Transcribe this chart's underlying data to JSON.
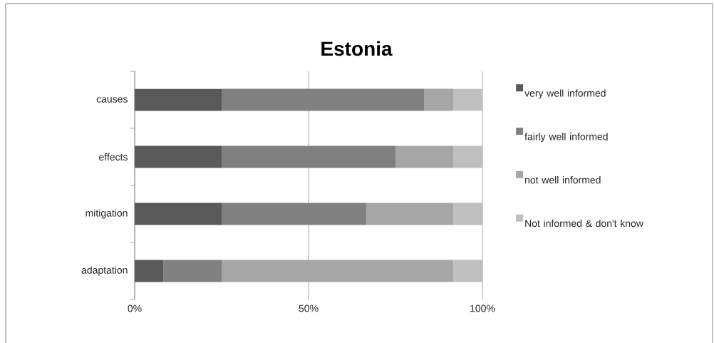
{
  "chart_data": {
    "type": "bar",
    "orientation": "horizontal",
    "stacked": true,
    "title": "Estonia",
    "categories": [
      "causes",
      "effects",
      "mitigation",
      "adaptation"
    ],
    "series": [
      {
        "name": "very well informed",
        "color": "#595959",
        "values": [
          25,
          25,
          25,
          8.3
        ]
      },
      {
        "name": "fairly well informed",
        "color": "#808080",
        "values": [
          58.3,
          50,
          41.7,
          16.7
        ]
      },
      {
        "name": "not well informed",
        "color": "#a6a6a6",
        "values": [
          8.3,
          16.7,
          25,
          66.7
        ]
      },
      {
        "name": "Not informed & don't know",
        "color": "#bfbfbf",
        "values": [
          8.3,
          8.3,
          8.3,
          8.3
        ]
      }
    ],
    "xlim": [
      0,
      100
    ],
    "xticks": [
      {
        "value": 0,
        "label": "0%"
      },
      {
        "value": 50,
        "label": "50%"
      },
      {
        "value": 100,
        "label": "100%"
      }
    ],
    "grid": "x",
    "legend": "right"
  }
}
